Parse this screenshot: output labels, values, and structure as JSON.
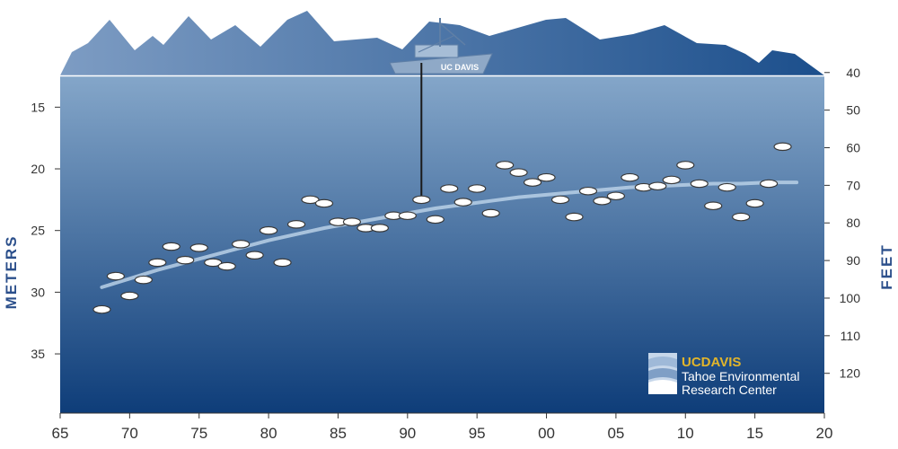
{
  "colors": {
    "water_top": "#84a6c9",
    "water_bottom": "#0e3d79",
    "mountain_light": "#7d9cc3",
    "mountain_dark": "#1c4f8c",
    "axis_title": "#2b4f8b",
    "trend": "#b9d0e6",
    "disk_fill": "#ffffff",
    "disk_stroke": "#3a3a3a",
    "brand_gold": "#e2b52b"
  },
  "chart_data": {
    "type": "scatter",
    "title": "",
    "xlabel": "",
    "ylabel": "METERS",
    "y2label": "FEET",
    "x_domain": [
      1965,
      2020
    ],
    "y_domain_meters": [
      12.5,
      39.8
    ],
    "y_inverted": true,
    "grid": false,
    "x_ticks": [
      {
        "value": 1965,
        "label": "65"
      },
      {
        "value": 1970,
        "label": "70"
      },
      {
        "value": 1975,
        "label": "75"
      },
      {
        "value": 1980,
        "label": "80"
      },
      {
        "value": 1985,
        "label": "85"
      },
      {
        "value": 1990,
        "label": "90"
      },
      {
        "value": 1995,
        "label": "95"
      },
      {
        "value": 2000,
        "label": "00"
      },
      {
        "value": 2005,
        "label": "05"
      },
      {
        "value": 2010,
        "label": "10"
      },
      {
        "value": 2015,
        "label": "15"
      },
      {
        "value": 2020,
        "label": "20"
      }
    ],
    "y_ticks_meters": [
      15,
      20,
      25,
      30,
      35
    ],
    "y_ticks_feet": [
      40,
      50,
      60,
      70,
      80,
      90,
      100,
      110,
      120
    ],
    "series": [
      {
        "x": [
          1968,
          1969,
          1970,
          1971,
          1972,
          1973,
          1974,
          1975,
          1976,
          1977,
          1978,
          1979,
          1980,
          1981,
          1982,
          1983,
          1984,
          1985,
          1986,
          1987,
          1988,
          1989,
          1990,
          1991,
          1992,
          1993,
          1994,
          1995,
          1996,
          1997,
          1998,
          1999,
          2000,
          2001,
          2002,
          2003,
          2004,
          2005,
          2006,
          2007,
          2008,
          2009,
          2010,
          2011,
          2012,
          2013,
          2014,
          2015,
          2016,
          2017
        ],
        "y": [
          31.4,
          28.7,
          30.3,
          29.0,
          27.6,
          26.3,
          27.4,
          26.4,
          27.6,
          27.9,
          26.1,
          27.0,
          25.0,
          27.6,
          24.5,
          22.5,
          22.8,
          24.3,
          24.3,
          24.8,
          24.8,
          23.8,
          23.8,
          22.5,
          24.1,
          21.6,
          22.7,
          21.6,
          23.6,
          19.7,
          20.3,
          21.1,
          20.7,
          22.5,
          23.9,
          21.8,
          22.6,
          22.2,
          20.7,
          21.5,
          21.4,
          20.9,
          19.7,
          21.2,
          23.0,
          21.5,
          23.9,
          22.8,
          21.2,
          18.2
        ]
      }
    ],
    "trend": {
      "x": [
        1968,
        1970,
        1972,
        1974,
        1976,
        1978,
        1980,
        1982,
        1984,
        1986,
        1988,
        1990,
        1992,
        1994,
        1996,
        1998,
        2000,
        2002,
        2004,
        2006,
        2008,
        2010,
        2012,
        2014,
        2016,
        2018
      ],
      "y": [
        29.6,
        28.9,
        28.2,
        27.6,
        27.0,
        26.4,
        25.8,
        25.3,
        24.8,
        24.4,
        24.0,
        23.6,
        23.2,
        22.9,
        22.6,
        22.3,
        22.1,
        21.9,
        21.7,
        21.5,
        21.4,
        21.3,
        21.2,
        21.2,
        21.1,
        21.1
      ]
    },
    "annotations": {
      "boat_label": "UC DAVIS",
      "logo": {
        "brand_prefix": "UC",
        "brand_suffix": "DAVIS",
        "line1": "Tahoe Environmental",
        "line2": "Research Center"
      }
    }
  }
}
